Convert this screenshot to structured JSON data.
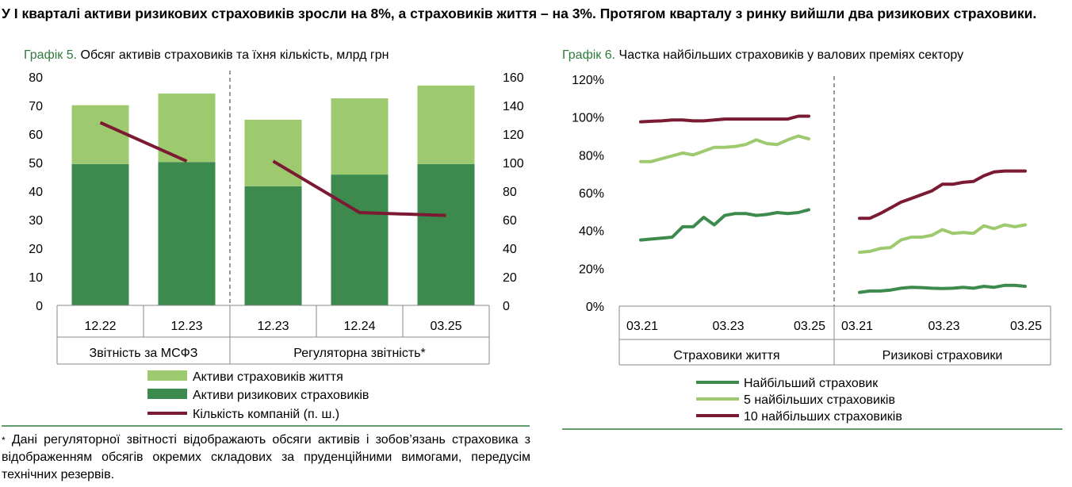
{
  "headline": "У І кварталі активи ризикових страховиків зросли на 8%, а страховиків життя – на 3%. Протягом кварталу з ринку вийшли два ризикових страховики.",
  "colors": {
    "dark_green": "#3c8a4d",
    "light_green": "#9dca6f",
    "maroon": "#7b1a33",
    "title_green": "#2f7a3c"
  },
  "chart5": {
    "title_label": "Графік 5.",
    "title_text": " Обсяг активів страховиків та їхня кількість, млрд грн",
    "groups": [
      "Звітність за МСФЗ",
      "Регуляторна звітність*"
    ],
    "legend": [
      "Активи страховиків життя",
      "Активи ризикових страховиків",
      "Кількість компаній (п. ш.)"
    ]
  },
  "chart6": {
    "title_label": "Графік 6.",
    "title_text": " Частка найбільших страховиків у валових преміях сектору",
    "panels": [
      "Страховики життя",
      "Ризикові страховики"
    ],
    "legend": [
      "Найбільший страховик",
      "5 найбільших страховиків",
      "10 найбільших страховиків"
    ]
  },
  "footnote": {
    "star": "*",
    "text": " Дані регуляторної звітності відображають обсяги активів і зобов’язань страховика з відображенням обсягів окремих складових за пруденційними вимогами, передусім технічних резервів."
  },
  "chart_data": [
    {
      "type": "bar",
      "title": "Обсяг активів страховиків та їхня кількість, млрд грн",
      "stacked": true,
      "categories": [
        "12.22",
        "12.23",
        "12.23",
        "12.24",
        "03.25"
      ],
      "category_groups": [
        {
          "label": "Звітність за МСФЗ",
          "count": 2
        },
        {
          "label": "Регуляторна звітність*",
          "count": 3
        }
      ],
      "ylim": [
        0,
        80
      ],
      "yticks": [
        0,
        10,
        20,
        30,
        40,
        50,
        60,
        70,
        80
      ],
      "y2lim": [
        0,
        160
      ],
      "y2ticks": [
        0,
        20,
        40,
        60,
        80,
        100,
        120,
        140,
        160
      ],
      "series": [
        {
          "name": "Активи ризикових страховиків",
          "kind": "bar",
          "values": [
            49.5,
            50.2,
            41.7,
            45.8,
            49.5
          ]
        },
        {
          "name": "Активи страховиків життя",
          "kind": "bar",
          "values": [
            20.6,
            24.0,
            23.3,
            26.7,
            27.5
          ]
        },
        {
          "name": "Кількість компаній (п. ш.)",
          "kind": "line",
          "axis": "right",
          "segments": [
            [
              128,
              101
            ],
            [
              101,
              65,
              63
            ]
          ]
        }
      ]
    },
    {
      "type": "line",
      "title": "Частка найбільших страховиків у валових преміях сектору",
      "ylim": [
        0,
        120
      ],
      "yticks": [
        "0%",
        "20%",
        "40%",
        "60%",
        "80%",
        "100%",
        "120%"
      ],
      "panels": [
        {
          "label": "Страховики життя",
          "x_ticks": [
            "03.21",
            "03.23",
            "03.25"
          ],
          "series": [
            {
              "name": "Найбільший страховик",
              "values": [
                35,
                35.5,
                36,
                36.5,
                42,
                42,
                47,
                43,
                48,
                49,
                49,
                48,
                48.5,
                49.5,
                49,
                49.5,
                51
              ]
            },
            {
              "name": "5 найбільших страховиків",
              "values": [
                76.5,
                76.5,
                78,
                79.5,
                81,
                80,
                82,
                84,
                84,
                84.5,
                85.5,
                88,
                86,
                85.5,
                88,
                90,
                88.5
              ]
            },
            {
              "name": "10 найбільших страховиків",
              "values": [
                97.5,
                97.8,
                98,
                98.5,
                98.5,
                98,
                98,
                98.5,
                99,
                99,
                99,
                99,
                99,
                99,
                99,
                100.5,
                100.5
              ]
            }
          ]
        },
        {
          "label": "Ризикові страховики",
          "x_ticks": [
            "03.21",
            "03.23",
            "03.25"
          ],
          "series": [
            {
              "name": "Найбільший страховик",
              "values": [
                7.3,
                8,
                8,
                8.5,
                9.5,
                10,
                9.8,
                9.5,
                9.3,
                9.5,
                10,
                9.5,
                10.5,
                10,
                11,
                11,
                10.5
              ]
            },
            {
              "name": "5 найбільших страховиків",
              "values": [
                28.5,
                29,
                30.5,
                31,
                35,
                36.5,
                36.5,
                37.5,
                40.5,
                38.5,
                39,
                38.5,
                42.5,
                41,
                43,
                42,
                43
              ]
            },
            {
              "name": "10 найбільших страховиків",
              "values": [
                46.5,
                46.5,
                49,
                52,
                55,
                57,
                59,
                61,
                64.5,
                64.5,
                65.5,
                66,
                69,
                71,
                71.5,
                71.5,
                71.5
              ]
            }
          ]
        }
      ]
    }
  ]
}
